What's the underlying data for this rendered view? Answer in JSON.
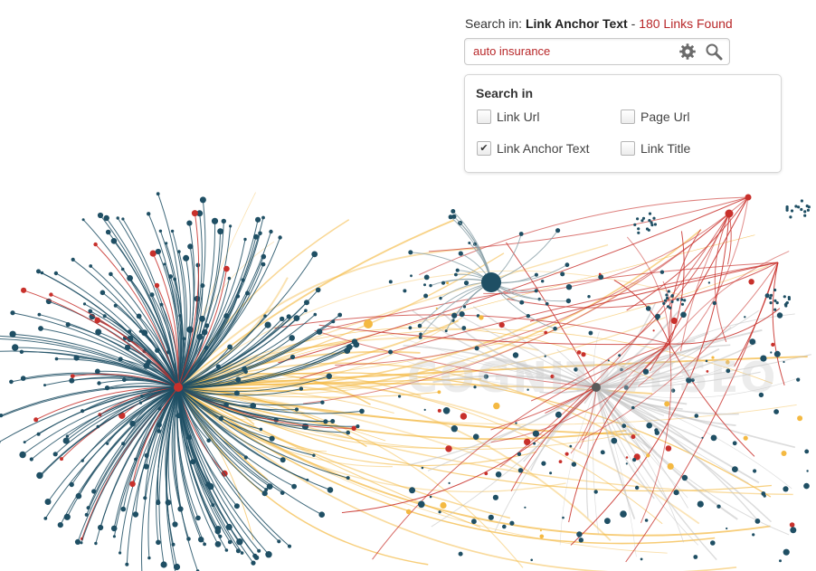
{
  "search": {
    "prefix": "Search in:",
    "scope": "Link Anchor Text",
    "separator": " - ",
    "result_count": "180 Links Found",
    "query": "auto insurance"
  },
  "search_panel": {
    "title": "Search in",
    "options": [
      {
        "label": "Link Url",
        "checked": false
      },
      {
        "label": "Page Url",
        "checked": false
      },
      {
        "label": "Link Anchor Text",
        "checked": true
      },
      {
        "label": "Link Title",
        "checked": false
      }
    ]
  },
  "watermark": "COGNITIVESEO",
  "colors": {
    "node_teal": "#1f4f64",
    "link_red": "#c8302b",
    "link_yellow": "#f4b942",
    "link_gray": "#bfbfbf",
    "accent_red": "#b8282a"
  }
}
